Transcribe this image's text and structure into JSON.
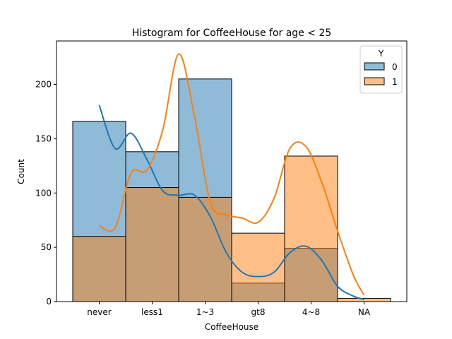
{
  "chart_data": {
    "type": "bar",
    "title": "Histogram for CoffeeHouse for age < 25",
    "xlabel": "CoffeeHouse",
    "ylabel": "Count",
    "categories": [
      "never",
      "less1",
      "1~3",
      "gt8",
      "4~8",
      "NA"
    ],
    "ylim": [
      0,
      240
    ],
    "yticks": [
      0,
      50,
      100,
      150,
      200
    ],
    "legend": {
      "title": "Y",
      "placement": "top-right"
    },
    "series": [
      {
        "name": "0",
        "color": "#1f77b4",
        "values": [
          166,
          138,
          205,
          17,
          49,
          0
        ],
        "kde": [
          181,
          141,
          155,
          131,
          102,
          98,
          98,
          78,
          45,
          27,
          23,
          27,
          45,
          51,
          38,
          14,
          5,
          2
        ]
      },
      {
        "name": "1",
        "color": "#ff7f0e",
        "values": [
          60,
          105,
          96,
          63,
          134,
          3
        ],
        "kde": [
          70,
          68,
          118,
          121,
          158,
          228,
          170,
          91,
          80,
          77,
          73,
          95,
          141,
          143,
          110,
          65,
          24,
          6
        ]
      }
    ],
    "kde_x": [
      0,
      0.3,
      0.6,
      0.9,
      1.2,
      1.5,
      1.8,
      2.1,
      2.4,
      2.7,
      3.0,
      3.3,
      3.6,
      3.9,
      4.2,
      4.5,
      4.8,
      5.0
    ],
    "grid": false
  }
}
